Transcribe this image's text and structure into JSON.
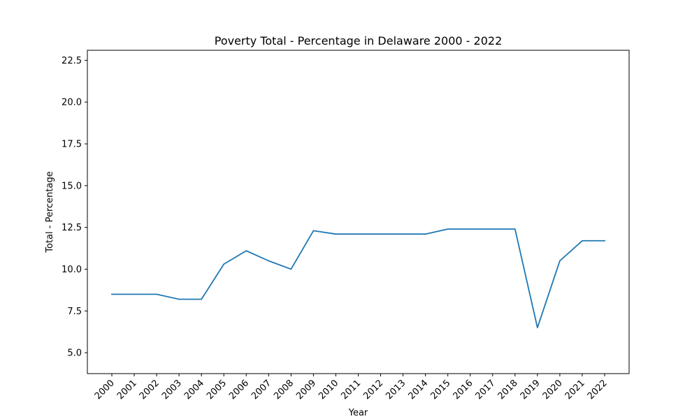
{
  "chart_data": {
    "type": "line",
    "title": "Poverty Total - Percentage in Delaware 2000 - 2022",
    "xlabel": "Year",
    "ylabel": "Total - Percentage",
    "categories": [
      "2000",
      "2001",
      "2002",
      "2003",
      "2004",
      "2005",
      "2006",
      "2007",
      "2008",
      "2009",
      "2010",
      "2011",
      "2012",
      "2013",
      "2014",
      "2015",
      "2016",
      "2017",
      "2018",
      "2019",
      "2020",
      "2021",
      "2022"
    ],
    "series": [
      {
        "color": "#1f77b4",
        "values": [
          8.5,
          8.5,
          8.5,
          8.2,
          8.2,
          10.3,
          11.1,
          10.5,
          10.0,
          12.3,
          12.1,
          12.1,
          12.1,
          12.1,
          12.1,
          12.4,
          12.4,
          12.4,
          12.4,
          6.5,
          10.5,
          11.7,
          11.7
        ]
      }
    ],
    "ylim": [
      3.75,
      23.1
    ],
    "yticks": [
      5.0,
      7.5,
      10.0,
      12.5,
      15.0,
      17.5,
      20.0,
      22.5
    ],
    "ytick_labels": [
      "5.0",
      "7.5",
      "10.0",
      "12.5",
      "15.0",
      "17.5",
      "20.0",
      "22.5"
    ],
    "grid": false,
    "legend": "none"
  }
}
